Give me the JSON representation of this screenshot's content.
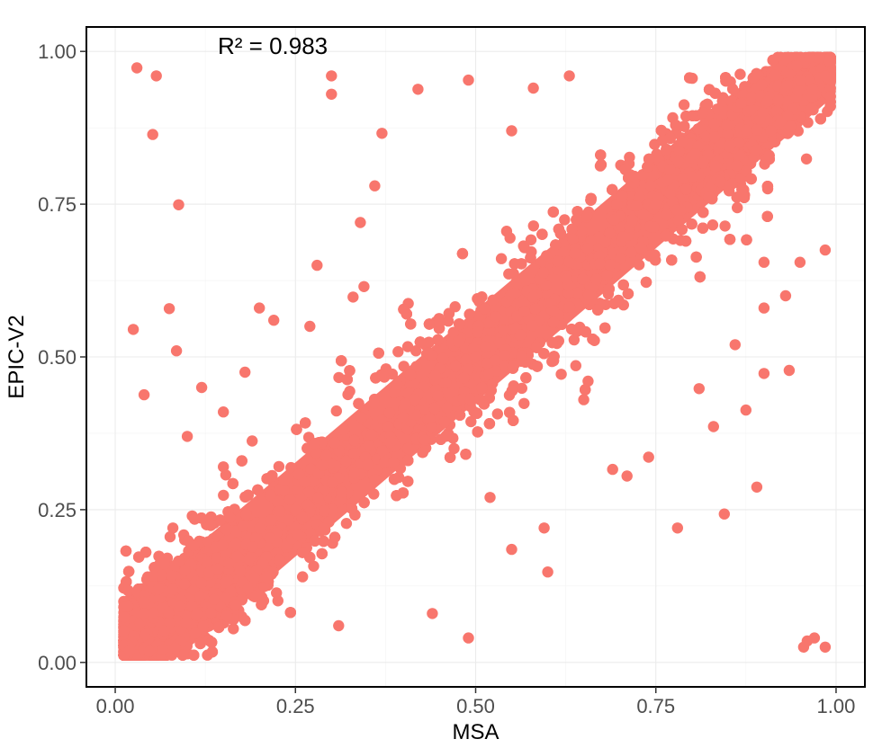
{
  "chart_data": {
    "type": "scatter",
    "xlabel": "MSA",
    "ylabel": "EPIC-V2",
    "annotation": "R² = 0.983",
    "xlim": [
      -0.04,
      1.04
    ],
    "ylim": [
      -0.04,
      1.04
    ],
    "x_ticks": [
      0.0,
      0.25,
      0.5,
      0.75,
      1.0
    ],
    "y_ticks": [
      0.0,
      0.25,
      0.5,
      0.75,
      1.0
    ],
    "x_tick_labels": [
      "0.00",
      "0.25",
      "0.50",
      "0.75",
      "1.00"
    ],
    "y_tick_labels": [
      "0.00",
      "0.25",
      "0.50",
      "0.75",
      "1.00"
    ],
    "grid": true,
    "legend": "none",
    "point_color": "#f8766d",
    "r_squared": 0.983,
    "dense_cloud": {
      "description_of_trend": "y ≈ x",
      "x_range": [
        0.01,
        0.99
      ],
      "y_range": [
        0.01,
        0.99
      ],
      "approx_band_halfwidth": 0.12
    },
    "points": [
      [
        0.03,
        0.973
      ],
      [
        0.057,
        0.96
      ],
      [
        0.052,
        0.864
      ],
      [
        0.088,
        0.749
      ],
      [
        0.3,
        0.96
      ],
      [
        0.3,
        0.93
      ],
      [
        0.42,
        0.938
      ],
      [
        0.49,
        0.953
      ],
      [
        0.025,
        0.545
      ],
      [
        0.075,
        0.579
      ],
      [
        0.085,
        0.51
      ],
      [
        0.04,
        0.438
      ],
      [
        0.955,
        0.025
      ],
      [
        0.97,
        0.04
      ],
      [
        0.985,
        0.025
      ],
      [
        0.96,
        0.035
      ],
      [
        0.89,
        0.287
      ],
      [
        0.845,
        0.243
      ],
      [
        0.81,
        0.448
      ],
      [
        0.875,
        0.413
      ],
      [
        0.9,
        0.473
      ],
      [
        0.935,
        0.478
      ],
      [
        0.74,
        0.336
      ],
      [
        0.69,
        0.316
      ],
      [
        0.71,
        0.305
      ],
      [
        0.83,
        0.386
      ],
      [
        0.65,
        0.43
      ],
      [
        0.6,
        0.148
      ],
      [
        0.595,
        0.22
      ],
      [
        0.49,
        0.04
      ],
      [
        0.44,
        0.08
      ],
      [
        0.31,
        0.06
      ],
      [
        0.22,
        0.56
      ],
      [
        0.33,
        0.598
      ],
      [
        0.345,
        0.615
      ],
      [
        0.37,
        0.866
      ],
      [
        0.36,
        0.78
      ],
      [
        0.34,
        0.72
      ],
      [
        0.9,
        0.58
      ],
      [
        0.93,
        0.6
      ],
      [
        0.95,
        0.655
      ],
      [
        0.985,
        0.675
      ],
      [
        0.9,
        0.655
      ],
      [
        0.86,
        0.52
      ],
      [
        0.28,
        0.65
      ],
      [
        0.2,
        0.58
      ],
      [
        0.15,
        0.41
      ],
      [
        0.18,
        0.475
      ],
      [
        0.12,
        0.45
      ],
      [
        0.1,
        0.37
      ],
      [
        0.78,
        0.22
      ],
      [
        0.55,
        0.185
      ],
      [
        0.52,
        0.27
      ],
      [
        0.47,
        0.35
      ],
      [
        0.55,
        0.87
      ],
      [
        0.58,
        0.94
      ],
      [
        0.63,
        0.96
      ],
      [
        0.27,
        0.55
      ],
      [
        0.15,
        0.32
      ],
      [
        0.08,
        0.22
      ],
      [
        0.06,
        0.12
      ],
      [
        0.04,
        0.08
      ],
      [
        0.02,
        0.02
      ],
      [
        0.5,
        0.5
      ],
      [
        0.75,
        0.75
      ],
      [
        0.25,
        0.25
      ],
      [
        0.99,
        0.985
      ],
      [
        0.985,
        0.96
      ]
    ]
  }
}
